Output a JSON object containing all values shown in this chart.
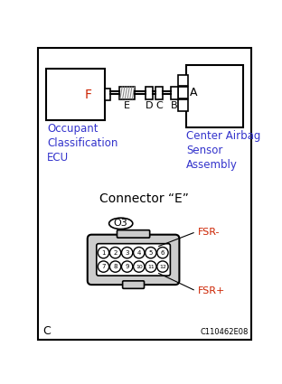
{
  "background_color": "#ffffff",
  "border_color": "#000000",
  "blue_text_color": "#3333cc",
  "red_text_color": "#cc2200",
  "fig_width": 3.12,
  "fig_height": 4.25,
  "dpi": 100,
  "connector_label": "Connector “E”",
  "pin_labels_top": [
    "1",
    "2",
    "3",
    "4",
    "5",
    "6"
  ],
  "pin_labels_bottom": [
    "7",
    "8",
    "9",
    "10",
    "11",
    "12"
  ],
  "o3_label": "O3",
  "fsr_minus": "FSR-",
  "fsr_plus": "FSR+",
  "label_left": "Occupant\nClassification\nECU",
  "label_right": "Center Airbag\nSensor\nAssembly",
  "letter_f": "F",
  "letter_e": "E",
  "letter_d": "D",
  "letter_c": "C",
  "letter_b": "B",
  "letter_a": "A",
  "corner_label_c": "C",
  "corner_label_ref": "C110462E08"
}
